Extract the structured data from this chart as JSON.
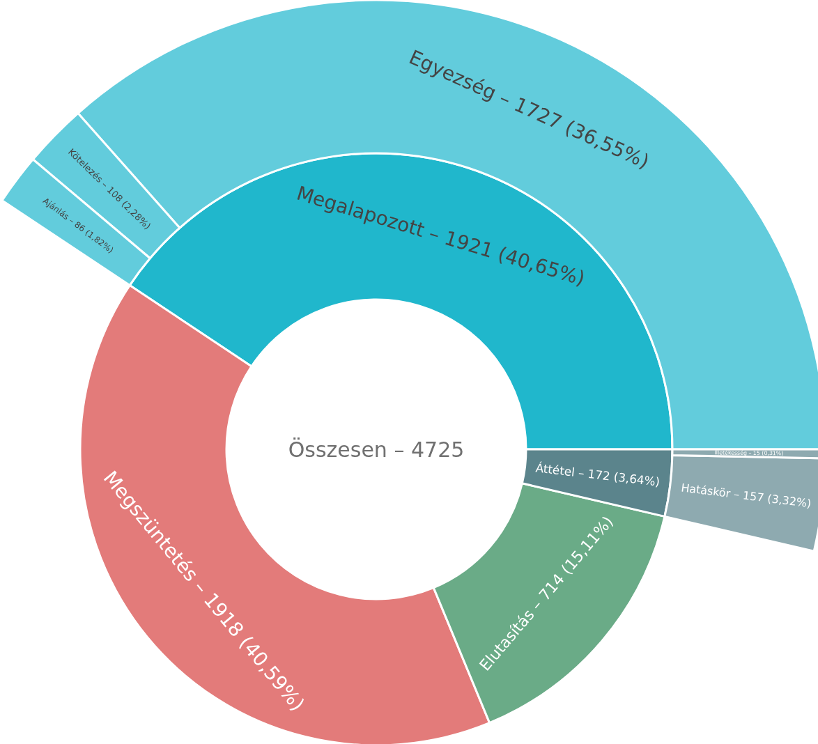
{
  "chart_data": {
    "type": "other",
    "title": "Összesen – 4725",
    "categories": [
      "Megalapozott –",
      "Egyezség –",
      "Kötelezés –",
      "Ajánlás –",
      "Megszüntetés –",
      "Elutasítás –",
      "Áttétel –",
      "Hatáskör –",
      "Illetékesség –"
    ],
    "values": [
      1921,
      1727,
      108,
      86,
      1918,
      714,
      172,
      157,
      15
    ],
    "data_labels": true,
    "annotations": [
      {
        "text": "(40,65%)",
        "x": "Megalapozott –"
      },
      {
        "text": "(36,55%)",
        "x": "Egyezség –"
      },
      {
        "text": "(2,28%)",
        "x": "Kötelezés –"
      },
      {
        "text": "(1,82%)",
        "x": "Ajánlás –"
      },
      {
        "text": "(40,59%)",
        "x": "Megszüntetés –"
      },
      {
        "text": "(15,11%)",
        "x": "Elutasítás –"
      },
      {
        "text": "(3,64%)",
        "x": "Áttétel –"
      },
      {
        "text": "(3,32%)",
        "x": "Hatáskör –"
      },
      {
        "text": "(0,31%)",
        "x": "Illetékesség –"
      }
    ],
    "colors": [
      "#20b7cc",
      "#62ccdc",
      "#62ccdc",
      "#62ccdc",
      "#e37b7a",
      "#6aab87",
      "#5b848c",
      "#8eaab0",
      "#8eaab0"
    ]
  }
}
